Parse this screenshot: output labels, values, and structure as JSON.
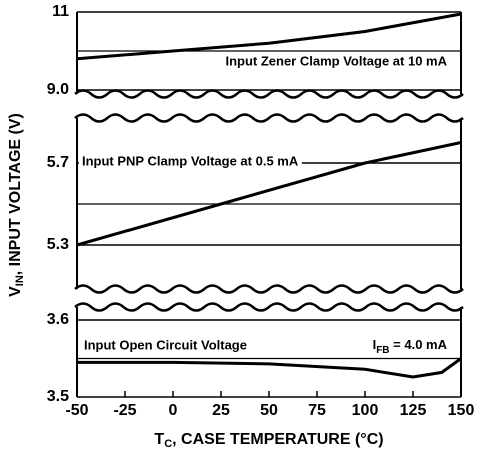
{
  "chart_data": {
    "type": "line",
    "x_label": {
      "main": "T",
      "sub": "C",
      "rest": ", CASE TEMPERATURE (°C)"
    },
    "y_label": {
      "main": "V",
      "sub": "IN",
      "rest": ", INPUT VOLTAGE (V)"
    },
    "xlim": [
      -50,
      150
    ],
    "xticks": [
      -50,
      -25,
      0,
      25,
      50,
      75,
      100,
      125,
      150
    ],
    "color": "#000000",
    "grid": true,
    "panels": [
      {
        "ylim": [
          9,
          11
        ],
        "yticks": [
          11,
          {
            "value": 9,
            "label": "9.0"
          }
        ],
        "grid_lines": [
          10
        ],
        "series": [
          {
            "name": "Input Zener Clamp Voltage at 10 mA",
            "x": [
              -50,
              0,
              50,
              100,
              150
            ],
            "values": [
              9.8,
              10.0,
              10.2,
              10.5,
              10.95
            ]
          }
        ]
      },
      {
        "ylim": [
          5.1,
          5.9
        ],
        "yticks": [
          5.7,
          5.3
        ],
        "grid_lines": [
          5.5
        ],
        "series": [
          {
            "name": "Input PNP Clamp Voltage at 0.5 mA",
            "x": [
              -50,
              25,
              100,
              150
            ],
            "values": [
              5.3,
              5.5,
              5.7,
              5.8
            ]
          }
        ]
      },
      {
        "ylim": [
          3.5,
          3.6
        ],
        "yticks": [
          3.6,
          3.5
        ],
        "grid_lines": [
          3.55
        ],
        "series": [
          {
            "name": "Input Open Circuit Voltage",
            "x": [
              -50,
              0,
              50,
              100,
              125,
              140,
              150
            ],
            "values": [
              3.545,
              3.545,
              3.543,
              3.536,
              3.526,
              3.532,
              3.55
            ]
          }
        ],
        "annotation": {
          "main": "I",
          "sub": "FB",
          "rest": " = 4.0 mA"
        }
      }
    ]
  }
}
